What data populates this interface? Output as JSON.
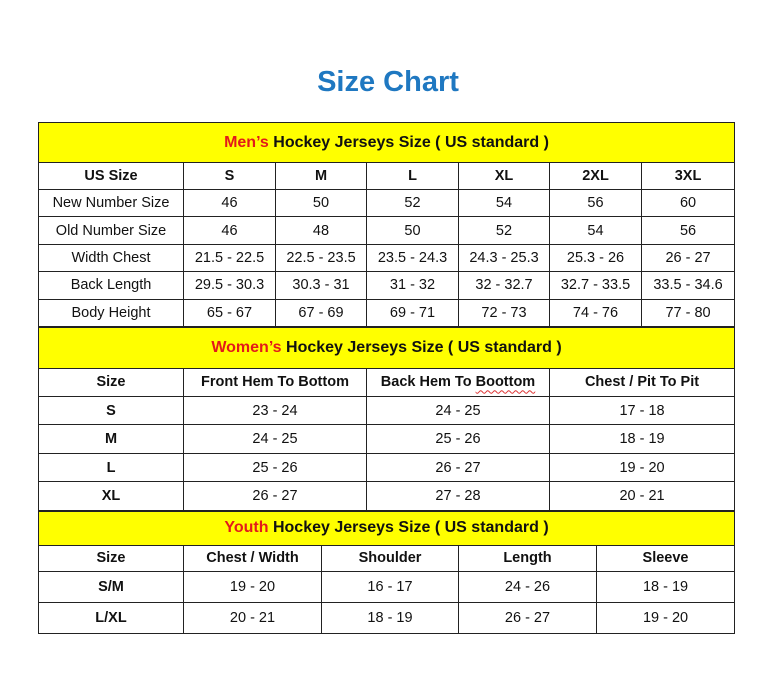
{
  "title": "Size Chart",
  "colors": {
    "title": "#1f78c1",
    "section_bg": "#ffff00",
    "highlight": "#e31a1a"
  },
  "men": {
    "heading_highlight": "Men’s",
    "heading_rest": " Hockey Jerseys Size ( US standard )",
    "columns": [
      "US Size",
      "S",
      "M",
      "L",
      "XL",
      "2XL",
      "3XL"
    ],
    "rows": [
      [
        "New Number Size",
        "46",
        "50",
        "52",
        "54",
        "56",
        "60"
      ],
      [
        "Old Number Size",
        "46",
        "48",
        "50",
        "52",
        "54",
        "56"
      ],
      [
        "Width Chest",
        "21.5 - 22.5",
        "22.5 - 23.5",
        "23.5 - 24.3",
        "24.3 - 25.3",
        "25.3 - 26",
        "26 - 27"
      ],
      [
        "Back Length",
        "29.5 - 30.3",
        "30.3 - 31",
        "31 - 32",
        "32 - 32.7",
        "32.7 - 33.5",
        "33.5 - 34.6"
      ],
      [
        "Body Height",
        "65 - 67",
        "67 - 69",
        "69 - 71",
        "72 - 73",
        "74 - 76",
        "77 - 80"
      ]
    ]
  },
  "women": {
    "heading_highlight": "Women’s",
    "heading_rest": " Hockey Jerseys Size ( US standard )",
    "columns": [
      "Size",
      "Front Hem To Bottom",
      "Back Hem To Boottom",
      "Chest / Pit To Pit"
    ],
    "rows": [
      [
        "S",
        "23 - 24",
        "24 - 25",
        "17 - 18"
      ],
      [
        "M",
        "24 - 25",
        "25 - 26",
        "18 - 19"
      ],
      [
        "L",
        "25 - 26",
        "26 - 27",
        "19 - 20"
      ],
      [
        "XL",
        "26 - 27",
        "27 - 28",
        "20 - 21"
      ]
    ]
  },
  "youth": {
    "heading_highlight": "Youth",
    "heading_rest": " Hockey Jerseys Size ( US standard )",
    "columns": [
      "Size",
      "Chest / Width",
      "Shoulder",
      "Length",
      "Sleeve"
    ],
    "rows": [
      [
        "S/M",
        "19 - 20",
        "16 - 17",
        "24 - 26",
        "18 - 19"
      ],
      [
        "L/XL",
        "20 - 21",
        "18 - 19",
        "26 - 27",
        "19 - 20"
      ]
    ]
  }
}
